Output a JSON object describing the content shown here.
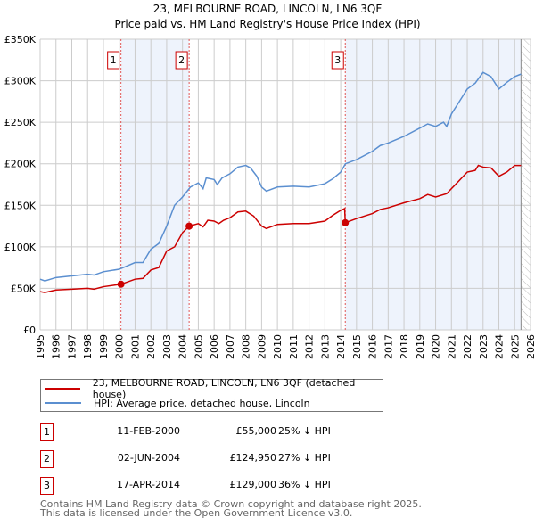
{
  "chart_data": {
    "type": "line",
    "title": "23, MELBOURNE ROAD, LINCOLN, LN6 3QF",
    "subtitle": "Price paid vs. HM Land Registry's House Price Index (HPI)",
    "xlim": [
      1995,
      2026
    ],
    "ylim": [
      0,
      350000
    ],
    "y_ticks": [
      0,
      50000,
      100000,
      150000,
      200000,
      250000,
      300000,
      350000
    ],
    "y_tick_labels": [
      "£0",
      "£50K",
      "£100K",
      "£150K",
      "£200K",
      "£250K",
      "£300K",
      "£350K"
    ],
    "x_ticks": [
      1995,
      1996,
      1997,
      1998,
      1999,
      2000,
      2001,
      2002,
      2003,
      2004,
      2005,
      2006,
      2007,
      2008,
      2009,
      2010,
      2011,
      2012,
      2013,
      2014,
      2015,
      2016,
      2017,
      2018,
      2019,
      2020,
      2021,
      2022,
      2023,
      2024,
      2025,
      2026
    ],
    "grid": true,
    "shaded_periods": [
      [
        2000.11,
        2004.42
      ],
      [
        2014.29,
        2025.4
      ]
    ],
    "forecast_hatch_from": 2025.4,
    "series": [
      {
        "name": "23, MELBOURNE ROAD, LINCOLN, LN6 3QF (detached house)",
        "color": "#cc0000",
        "x": [
          1995,
          1995.3,
          1996,
          1997,
          1998,
          1998.4,
          1999,
          2000.11,
          2001,
          2001.5,
          2002,
          2002.5,
          2003,
          2003.5,
          2004,
          2004.42,
          2005,
          2005.3,
          2005.6,
          2006,
          2006.3,
          2006.6,
          2007,
          2007.5,
          2008,
          2008.5,
          2009,
          2009.3,
          2010,
          2011,
          2012,
          2013,
          2013.5,
          2014,
          2014.25,
          2014.29,
          2015,
          2016,
          2016.5,
          2017,
          2018,
          2019,
          2019.5,
          2020,
          2020.7,
          2021,
          2021.5,
          2022,
          2022.5,
          2022.7,
          2023,
          2023.5,
          2024,
          2024.5,
          2025,
          2025.4
        ],
        "y": [
          46000,
          45000,
          48000,
          49000,
          50000,
          49000,
          52000,
          55000,
          61000,
          62000,
          72000,
          75000,
          95000,
          100000,
          117000,
          124950,
          128000,
          124000,
          132000,
          131000,
          128000,
          132000,
          135000,
          142000,
          143000,
          137000,
          125000,
          122000,
          127000,
          128000,
          128000,
          131000,
          138000,
          144000,
          146000,
          129000,
          134000,
          140000,
          145000,
          147000,
          153000,
          158000,
          163000,
          160000,
          164000,
          170000,
          180000,
          190000,
          192000,
          198000,
          196000,
          195000,
          185000,
          190000,
          198000,
          198000
        ]
      },
      {
        "name": "HPI: Average price, detached house, Lincoln",
        "color": "#5b8fd0",
        "x": [
          1995,
          1995.3,
          1996,
          1997,
          1998,
          1998.4,
          1999,
          2000,
          2001,
          2001.5,
          2002,
          2002.5,
          2003,
          2003.5,
          2004,
          2004.5,
          2005,
          2005.3,
          2005.5,
          2006,
          2006.2,
          2006.5,
          2007,
          2007.5,
          2008,
          2008.3,
          2008.7,
          2009,
          2009.3,
          2010,
          2011,
          2012,
          2013,
          2013.5,
          2014,
          2014.3,
          2015,
          2016,
          2016.5,
          2017,
          2018,
          2019,
          2019.5,
          2020,
          2020.5,
          2020.7,
          2021,
          2021.5,
          2022,
          2022.5,
          2023,
          2023.5,
          2024,
          2024.5,
          2025,
          2025.4
        ],
        "y": [
          61000,
          59000,
          63000,
          65000,
          67000,
          66000,
          70000,
          73000,
          81000,
          81000,
          97000,
          104000,
          125000,
          150000,
          160000,
          172000,
          177000,
          170000,
          183000,
          181000,
          175000,
          183000,
          188000,
          196000,
          198000,
          195000,
          185000,
          172000,
          167000,
          172000,
          173000,
          172000,
          176000,
          182000,
          190000,
          200000,
          205000,
          215000,
          222000,
          225000,
          233000,
          243000,
          248000,
          245000,
          250000,
          245000,
          260000,
          275000,
          290000,
          297000,
          310000,
          305000,
          290000,
          298000,
          305000,
          308000
        ]
      }
    ],
    "sales": [
      {
        "id": "1",
        "x": 2000.11,
        "y": 55000
      },
      {
        "id": "2",
        "x": 2004.42,
        "y": 124950
      },
      {
        "id": "3",
        "x": 2014.29,
        "y": 129000
      }
    ]
  },
  "legend": {
    "property": "23, MELBOURNE ROAD, LINCOLN, LN6 3QF (detached house)",
    "hpi": "HPI: Average price, detached house, Lincoln"
  },
  "transactions": [
    {
      "id": "1",
      "date": "11-FEB-2000",
      "price": "£55,000",
      "hpi": "25% ↓ HPI"
    },
    {
      "id": "2",
      "date": "02-JUN-2004",
      "price": "£124,950",
      "hpi": "27% ↓ HPI"
    },
    {
      "id": "3",
      "date": "17-APR-2014",
      "price": "£129,000",
      "hpi": "36% ↓ HPI"
    }
  ],
  "footer": {
    "line1": "Contains HM Land Registry data © Crown copyright and database right 2025.",
    "line2": "This data is licensed under the Open Government Licence v3.0."
  },
  "colors": {
    "property": "#cc0000",
    "hpi": "#5b8fd0",
    "shade": "#eef3fc",
    "grid": "#cccccc"
  }
}
